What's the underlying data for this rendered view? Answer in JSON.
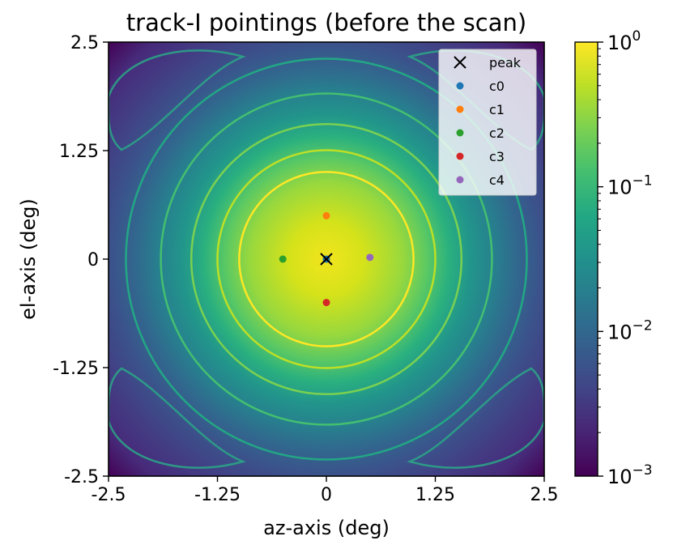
{
  "chart_data": {
    "type": "heatmap",
    "title": "track-I pointings (before the scan)",
    "xlabel": "az-axis (deg)",
    "ylabel": "el-axis (deg)",
    "xlim": [
      -2.5,
      2.5
    ],
    "ylim": [
      -2.5,
      2.5
    ],
    "x_ticks": [
      -2.5,
      -1.25,
      0,
      1.25,
      2.5
    ],
    "x_tick_labels": [
      "-2.5",
      "-1.25",
      "0",
      "1.25",
      "2.5"
    ],
    "y_ticks": [
      -2.5,
      -1.25,
      0,
      1.25,
      2.5
    ],
    "y_tick_labels": [
      "-2.5",
      "-1.25",
      "0",
      "1.25",
      "2.5"
    ],
    "colormap": "viridis",
    "colorbar": {
      "scale": "log",
      "range": [
        0.001,
        1
      ],
      "tick_values": [
        1,
        0.1,
        0.01,
        0.001
      ],
      "tick_bases": [
        "10",
        "10",
        "10",
        "10"
      ],
      "tick_exponents": [
        "0",
        "−1",
        "−2",
        "−3"
      ]
    },
    "beam_rings_deg": [
      1.0,
      1.25,
      1.55,
      1.9,
      2.3
    ],
    "series": [
      {
        "name": "peak",
        "marker": "x",
        "color": "#000000",
        "points": [
          [
            0,
            0
          ]
        ]
      },
      {
        "name": "c0",
        "marker": "o",
        "color": "#1f77b4",
        "points": [
          [
            0,
            0
          ]
        ]
      },
      {
        "name": "c1",
        "marker": "o",
        "color": "#ff7f0e",
        "points": [
          [
            0,
            0.5
          ]
        ]
      },
      {
        "name": "c2",
        "marker": "o",
        "color": "#2ca02c",
        "points": [
          [
            -0.5,
            0
          ]
        ]
      },
      {
        "name": "c3",
        "marker": "o",
        "color": "#d62728",
        "points": [
          [
            0,
            -0.5
          ]
        ]
      },
      {
        "name": "c4",
        "marker": "o",
        "color": "#9467bd",
        "points": [
          [
            0.5,
            0.02
          ]
        ]
      }
    ],
    "legend_position": "top-right",
    "grid": false
  }
}
